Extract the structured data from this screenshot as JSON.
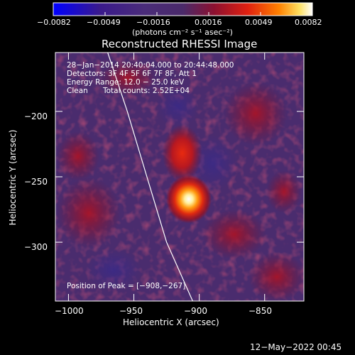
{
  "chart_data": {
    "type": "heatmap",
    "title": "Reconstructed RHESSI Image",
    "xlabel": "Heliocentric X (arcsec)",
    "ylabel": "Heliocentric Y (arcsec)",
    "xlim": [
      -1010,
      -820
    ],
    "ylim": [
      -345,
      -155
    ],
    "xticks": [
      -1000,
      -950,
      -900,
      -850
    ],
    "yticks": [
      -200,
      -250,
      -300
    ],
    "xtick_labels": [
      "−1000",
      "−950",
      "−900",
      "−850"
    ],
    "ytick_labels": [
      "−200",
      "−250",
      "−300"
    ],
    "colorbar": {
      "min": -0.0082,
      "max": 0.0082,
      "tick_labels": [
        "−0.0082",
        "−0.0049",
        "−0.0016",
        "0.0016",
        "0.0049",
        "0.0082"
      ],
      "unit": "(photons cm⁻² s⁻¹ asec⁻²)"
    },
    "annotations": {
      "time_range": "28−Jan−2014 20:40:04.000 to 20:44:48.000",
      "detectors": "Detectors: 3F 4F 5F 6F 7F 8F, Att 1",
      "energy_range": "Energy Range: 12.0 − 25.0 keV",
      "clean": "Clean",
      "total_counts": "Total counts: 2.52E+04",
      "peak_position": "Position of Peak = [−908,−267]"
    },
    "peak": {
      "x": -908,
      "y": -267,
      "value": 0.0082
    },
    "secondary_source": {
      "x": -913,
      "y": -232
    },
    "limb": [
      {
        "x": -970,
        "y": -155
      },
      {
        "x": -955,
        "y": -200
      },
      {
        "x": -940,
        "y": -250
      },
      {
        "x": -925,
        "y": -300
      },
      {
        "x": -905,
        "y": -345
      }
    ],
    "grid": false,
    "legend": "none"
  },
  "footer": {
    "date": "12−May−2022 00:45"
  },
  "colors": {
    "colormap": [
      "#0000ff",
      "#3a1a8c",
      "#4a2c7a",
      "#4a2a6a",
      "#8c1030",
      "#e02010",
      "#ff8000",
      "#ffe060",
      "#ffffff"
    ]
  }
}
